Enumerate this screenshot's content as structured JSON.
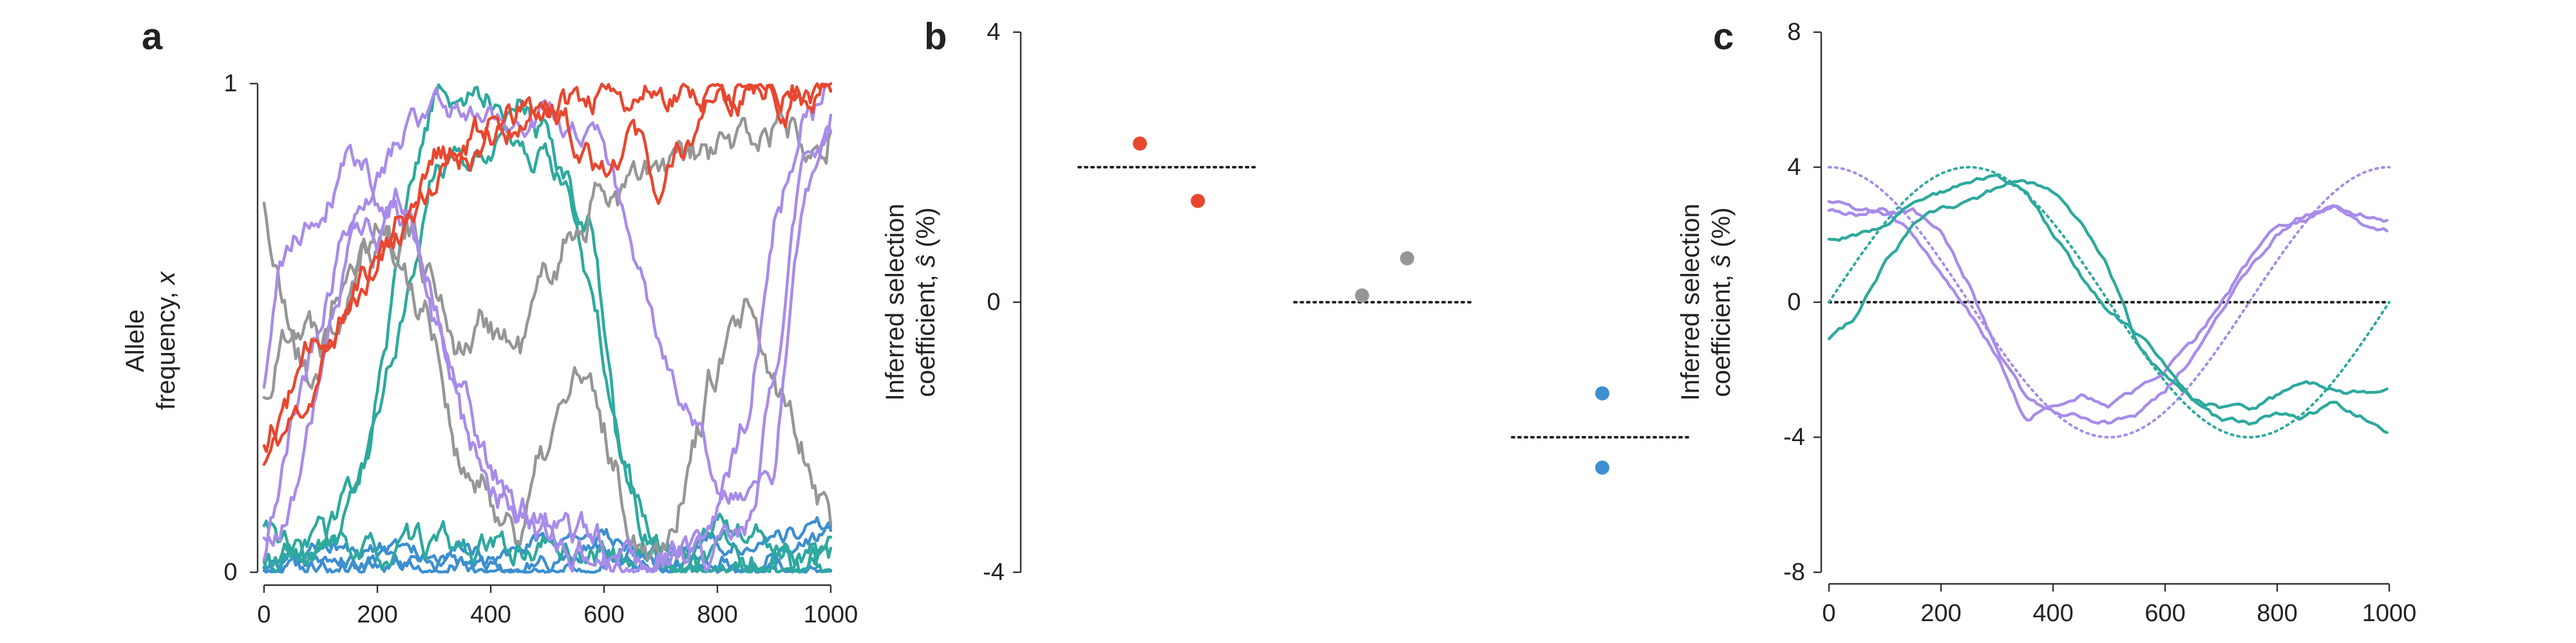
{
  "figure": {
    "colors": {
      "red": "#E8472F",
      "gray": "#969696",
      "teal": "#2EA99E",
      "purple": "#A88BEA",
      "blue": "#3C8FD0",
      "axis": "#333333",
      "reference": "#222222"
    }
  },
  "chart_data": [
    {
      "id": "a",
      "type": "line",
      "panel_label": "a",
      "ylabel_line1": "Allele",
      "ylabel_line2_prefix": "frequency, ",
      "ylabel_symbol": "x",
      "xlim": [
        0,
        1000
      ],
      "ylim": [
        0,
        1
      ],
      "xticks": [
        0,
        200,
        400,
        600,
        800,
        1000
      ],
      "xtick_labels": [
        "0",
        "200",
        "400",
        "600",
        "800",
        "1000"
      ],
      "yticks": [
        0,
        1
      ],
      "ytick_labels": [
        "0",
        "1"
      ],
      "series": [
        {
          "color_key": "red",
          "seed": 11,
          "noise": 0.024,
          "x": [
            0,
            80,
            150,
            220,
            300,
            400,
            500,
            600,
            700,
            800,
            900,
            1000
          ],
          "values": [
            0.22,
            0.36,
            0.55,
            0.7,
            0.8,
            0.9,
            0.96,
            0.98,
            0.99,
            0.99,
            0.99,
            0.99
          ]
        },
        {
          "color_key": "red",
          "seed": 12,
          "noise": 0.026,
          "x": [
            0,
            100,
            200,
            300,
            400,
            500,
            550,
            600,
            650,
            700,
            750,
            800,
            900,
            1000
          ],
          "values": [
            0.27,
            0.48,
            0.66,
            0.84,
            0.9,
            0.97,
            0.9,
            0.85,
            0.92,
            0.78,
            0.9,
            0.96,
            0.98,
            0.99
          ]
        },
        {
          "color_key": "gray",
          "seed": 21,
          "noise": 0.032,
          "x": [
            0,
            30,
            80,
            150,
            200,
            250,
            300,
            350,
            400,
            450,
            500,
            550,
            600,
            700,
            800,
            850,
            900,
            1000
          ],
          "values": [
            0.76,
            0.55,
            0.4,
            0.55,
            0.68,
            0.72,
            0.6,
            0.46,
            0.52,
            0.45,
            0.6,
            0.72,
            0.78,
            0.8,
            0.85,
            0.88,
            0.91,
            0.94
          ]
        },
        {
          "color_key": "gray",
          "seed": 22,
          "noise": 0.032,
          "x": [
            0,
            50,
            100,
            150,
            200,
            250,
            300,
            350,
            400,
            450,
            500,
            550,
            600,
            650,
            700,
            750,
            800,
            850,
            900,
            950,
            1000
          ],
          "values": [
            0.35,
            0.55,
            0.5,
            0.7,
            0.75,
            0.6,
            0.52,
            0.2,
            0.14,
            0.1,
            0.24,
            0.4,
            0.28,
            0.1,
            0.07,
            0.24,
            0.43,
            0.5,
            0.36,
            0.28,
            0.12
          ]
        },
        {
          "color_key": "teal",
          "seed": 31,
          "noise": 0.024,
          "x": [
            0,
            100,
            150,
            200,
            250,
            300,
            350,
            400,
            450,
            480,
            500,
            540,
            580,
            620,
            660,
            700,
            750,
            800,
            850,
            900,
            1000
          ],
          "values": [
            0.0,
            0.05,
            0.1,
            0.35,
            0.7,
            0.96,
            0.97,
            0.98,
            0.96,
            0.9,
            0.92,
            0.8,
            0.7,
            0.3,
            0.12,
            0.05,
            0.02,
            0.02,
            0.02,
            0.02,
            0.02
          ]
        },
        {
          "color_key": "teal",
          "seed": 32,
          "noise": 0.022,
          "x": [
            0,
            50,
            100,
            150,
            200,
            250,
            300,
            400,
            500,
            550,
            600,
            650,
            700,
            800,
            850,
            900,
            950,
            1000
          ],
          "values": [
            0.1,
            0.05,
            0.05,
            0.15,
            0.3,
            0.55,
            0.82,
            0.9,
            0.85,
            0.72,
            0.45,
            0.15,
            0.04,
            0.01,
            0.01,
            0.01,
            0.01,
            0.02
          ]
        },
        {
          "color_key": "teal",
          "seed": 33,
          "noise": 0.022,
          "x": [
            0,
            100,
            200,
            300,
            400,
            500,
            600,
            650,
            700,
            750,
            800,
            850,
            900,
            950,
            1000
          ],
          "values": [
            0.02,
            0.04,
            0.03,
            0.05,
            0.04,
            0.05,
            0.04,
            0.03,
            0.06,
            0.04,
            0.1,
            0.08,
            0.06,
            0.05,
            0.03
          ]
        },
        {
          "color_key": "purple",
          "seed": 41,
          "noise": 0.026,
          "x": [
            0,
            30,
            100,
            150,
            200,
            250,
            300,
            350,
            400,
            450,
            500,
            550,
            600,
            650,
            700,
            750,
            800,
            850,
            900,
            950,
            1000
          ],
          "values": [
            0.36,
            0.62,
            0.75,
            0.88,
            0.8,
            0.72,
            0.55,
            0.3,
            0.18,
            0.12,
            0.1,
            0.07,
            0.05,
            0.04,
            0.04,
            0.05,
            0.1,
            0.3,
            0.7,
            0.93,
            0.96
          ]
        },
        {
          "color_key": "purple",
          "seed": 42,
          "noise": 0.026,
          "x": [
            0,
            50,
            100,
            150,
            200,
            250,
            300,
            350,
            400,
            450,
            500,
            550,
            600,
            650,
            700,
            750,
            800,
            850,
            900,
            950,
            1000
          ],
          "values": [
            0.02,
            0.3,
            0.55,
            0.75,
            0.7,
            0.78,
            0.5,
            0.35,
            0.2,
            0.12,
            0.08,
            0.05,
            0.03,
            0.02,
            0.02,
            0.02,
            0.03,
            0.05,
            0.4,
            0.85,
            0.93
          ]
        },
        {
          "color_key": "purple",
          "seed": 43,
          "noise": 0.02,
          "x": [
            0,
            50,
            100,
            150,
            200,
            250,
            300,
            350,
            400,
            500,
            600,
            700,
            800,
            850,
            900,
            950,
            1000
          ],
          "values": [
            0.05,
            0.15,
            0.4,
            0.65,
            0.8,
            0.9,
            0.93,
            0.95,
            0.93,
            0.94,
            0.85,
            0.45,
            0.2,
            0.15,
            0.2,
            0.75,
            0.94
          ]
        },
        {
          "color_key": "blue",
          "seed": 51,
          "noise": 0.014,
          "x": [
            0,
            100,
            200,
            300,
            400,
            500,
            600,
            700,
            800,
            900,
            1000
          ],
          "values": [
            0.02,
            0.05,
            0.04,
            0.06,
            0.03,
            0.07,
            0.05,
            0.04,
            0.06,
            0.08,
            0.1
          ]
        },
        {
          "color_key": "blue",
          "seed": 52,
          "noise": 0.014,
          "x": [
            0,
            100,
            200,
            300,
            400,
            500,
            600,
            700,
            800,
            900,
            1000
          ],
          "values": [
            0.03,
            0.01,
            0.03,
            0.02,
            0.01,
            0.02,
            0.07,
            0.03,
            0.02,
            0.04,
            0.06
          ]
        },
        {
          "color_key": "blue",
          "seed": 53,
          "noise": 0.012,
          "x": [
            0,
            100,
            200,
            300,
            400,
            500,
            600,
            700,
            800,
            900,
            1000
          ],
          "values": [
            0.0,
            0.01,
            0.02,
            0.01,
            0.01,
            0.01,
            0.02,
            0.01,
            0.01,
            0.01,
            0.01
          ]
        }
      ]
    },
    {
      "id": "b",
      "type": "scatter",
      "panel_label": "b",
      "ylabel_line1": "Inferred selection",
      "ylabel_line2_prefix": "coefficient, ",
      "ylabel_symbol": "ŝ",
      "ylabel_suffix": " (%)",
      "ylim": [
        -4,
        4
      ],
      "yticks": [
        -4,
        0,
        4
      ],
      "ytick_labels": [
        "-4",
        "0",
        "4"
      ],
      "groups": [
        {
          "color_key": "red",
          "true_value": 2.0,
          "points": [
            2.35,
            1.5
          ]
        },
        {
          "color_key": "gray",
          "true_value": 0.0,
          "points": [
            0.65,
            0.1
          ]
        },
        {
          "color_key": "blue",
          "true_value": -2.0,
          "points": [
            -1.35,
            -2.45
          ]
        }
      ]
    },
    {
      "id": "c",
      "type": "line",
      "panel_label": "c",
      "ylabel_line1": "Inferred selection",
      "ylabel_line2_prefix": "coefficient, ",
      "ylabel_symbol": "ŝ",
      "ylabel_suffix": " (%)",
      "xlim": [
        0,
        1000
      ],
      "ylim": [
        -8,
        8
      ],
      "xticks": [
        0,
        200,
        400,
        600,
        800,
        1000
      ],
      "xtick_labels": [
        "0",
        "200",
        "400",
        "600",
        "800",
        "1000"
      ],
      "yticks": [
        -8,
        -4,
        0,
        4,
        8
      ],
      "ytick_labels": [
        "-8",
        "-4",
        "0",
        "4",
        "8"
      ],
      "reference_curves": [
        {
          "color_key": "purple",
          "formula": "4*cos(2*pi*t/1000)",
          "amplitude": 4,
          "phase": "cos"
        },
        {
          "color_key": "teal",
          "formula": "4*sin(2*pi*t/1000)",
          "amplitude": 4,
          "phase": "sin"
        }
      ],
      "series": [
        {
          "color_key": "purple",
          "x": [
            0,
            50,
            100,
            150,
            200,
            250,
            300,
            350,
            400,
            450,
            500,
            550,
            600,
            650,
            700,
            750,
            800,
            850,
            900,
            950,
            1000
          ],
          "values": [
            3.0,
            2.8,
            2.6,
            2.7,
            2.0,
            0.5,
            -1.5,
            -2.8,
            -3.2,
            -3.4,
            -3.6,
            -3.3,
            -2.6,
            -1.6,
            -0.3,
            1.0,
            2.0,
            2.6,
            2.8,
            2.6,
            2.4
          ]
        },
        {
          "color_key": "purple",
          "x": [
            0,
            50,
            100,
            150,
            200,
            250,
            300,
            350,
            400,
            450,
            500,
            550,
            600,
            650,
            700,
            750,
            800,
            850,
            900,
            950,
            1000
          ],
          "values": [
            2.7,
            2.6,
            2.8,
            2.0,
            0.8,
            -0.3,
            -1.6,
            -3.5,
            -3.0,
            -2.8,
            -3.1,
            -2.6,
            -2.0,
            -1.2,
            0.0,
            1.2,
            2.3,
            2.5,
            3.0,
            2.4,
            2.1
          ]
        },
        {
          "color_key": "teal",
          "x": [
            0,
            50,
            100,
            150,
            200,
            250,
            300,
            350,
            400,
            450,
            500,
            550,
            600,
            650,
            700,
            750,
            800,
            850,
            900,
            950,
            1000
          ],
          "values": [
            1.9,
            2.0,
            2.3,
            2.9,
            3.2,
            3.6,
            3.7,
            3.4,
            2.0,
            0.8,
            -0.3,
            -0.9,
            -1.8,
            -3.0,
            -3.5,
            -3.6,
            -3.3,
            -3.4,
            -3.0,
            -3.4,
            -4.0
          ]
        },
        {
          "color_key": "teal",
          "x": [
            0,
            50,
            100,
            150,
            200,
            250,
            300,
            350,
            400,
            450,
            500,
            550,
            600,
            650,
            700,
            750,
            800,
            850,
            900,
            950,
            1000
          ],
          "values": [
            -1.1,
            -0.4,
            1.2,
            2.2,
            2.8,
            2.9,
            3.4,
            3.6,
            3.3,
            2.3,
            1.0,
            -1.2,
            -2.2,
            -2.9,
            -3.1,
            -3.2,
            -2.8,
            -2.4,
            -2.6,
            -2.7,
            -2.5
          ]
        }
      ]
    }
  ]
}
